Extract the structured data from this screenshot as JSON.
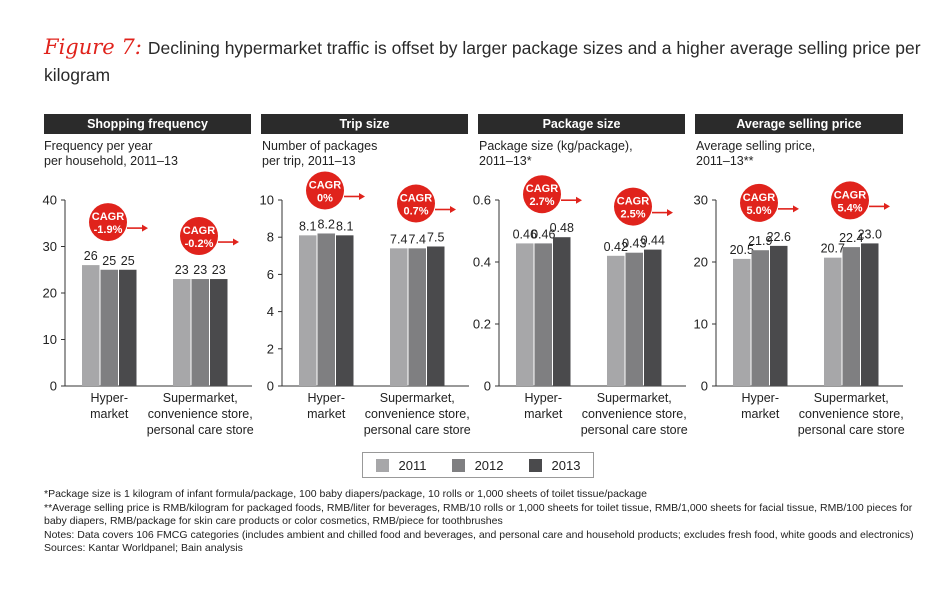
{
  "figure": {
    "label": "Figure 7:",
    "title": "Declining hypermarket traffic is offset by larger package sizes and a higher average selling price per kilogram"
  },
  "colors": {
    "2011": "#a7a7a9",
    "2012": "#7f7f81",
    "2013": "#4a4a4c",
    "accent": "#e0231c"
  },
  "legend": [
    "2011",
    "2012",
    "2013"
  ],
  "chart_data": [
    {
      "type": "bar",
      "title": "Shopping frequency",
      "subtitle": [
        "Frequency per year",
        "per household, 2011–13"
      ],
      "ylim": [
        0,
        40
      ],
      "yticks": [
        0,
        10,
        20,
        30,
        40
      ],
      "categories": [
        [
          "Hyper-",
          "market"
        ],
        [
          "Supermarket,",
          "convenience store,",
          "personal care store"
        ]
      ],
      "series": [
        {
          "name": "2011",
          "values": [
            26,
            23
          ]
        },
        {
          "name": "2012",
          "values": [
            25,
            23
          ]
        },
        {
          "name": "2013",
          "values": [
            25,
            23
          ]
        }
      ],
      "value_labels": [
        [
          "26",
          "25",
          "25"
        ],
        [
          "23",
          "23",
          "23"
        ]
      ],
      "cagr": [
        "-1.9%",
        "-0.2%"
      ]
    },
    {
      "type": "bar",
      "title": "Trip size",
      "subtitle": [
        "Number of packages",
        "per trip, 2011–13"
      ],
      "ylim": [
        0,
        10
      ],
      "yticks": [
        0,
        2,
        4,
        6,
        8,
        10
      ],
      "categories": [
        [
          "Hyper-",
          "market"
        ],
        [
          "Supermarket,",
          "convenience store,",
          "personal care store"
        ]
      ],
      "series": [
        {
          "name": "2011",
          "values": [
            8.1,
            7.4
          ]
        },
        {
          "name": "2012",
          "values": [
            8.2,
            7.4
          ]
        },
        {
          "name": "2013",
          "values": [
            8.1,
            7.5
          ]
        }
      ],
      "value_labels": [
        [
          "8.1",
          "8.2",
          "8.1"
        ],
        [
          "7.4",
          "7.4",
          "7.5"
        ]
      ],
      "cagr": [
        "0%",
        "0.7%"
      ]
    },
    {
      "type": "bar",
      "title": "Package size",
      "subtitle": [
        "Package size (kg/package),",
        "2011–13*"
      ],
      "ylim": [
        0,
        0.6
      ],
      "yticks": [
        0,
        0.2,
        0.4,
        0.6
      ],
      "categories": [
        [
          "Hyper-",
          "market"
        ],
        [
          "Supermarket,",
          "convenience store,",
          "personal care store"
        ]
      ],
      "series": [
        {
          "name": "2011",
          "values": [
            0.46,
            0.42
          ]
        },
        {
          "name": "2012",
          "values": [
            0.46,
            0.43
          ]
        },
        {
          "name": "2013",
          "values": [
            0.48,
            0.44
          ]
        }
      ],
      "value_labels": [
        [
          "0.46",
          "0.46",
          "0.48"
        ],
        [
          "0.42",
          "0.43",
          "0.44"
        ]
      ],
      "cagr": [
        "2.7%",
        "2.5%"
      ]
    },
    {
      "type": "bar",
      "title": "Average selling price",
      "subtitle": [
        "Average selling price,",
        "2011–13**"
      ],
      "ylim": [
        0,
        30
      ],
      "yticks": [
        0,
        10,
        20,
        30
      ],
      "categories": [
        [
          "Hyper-",
          "market"
        ],
        [
          "Supermarket,",
          "convenience store,",
          "personal care store"
        ]
      ],
      "series": [
        {
          "name": "2011",
          "values": [
            20.5,
            20.7
          ]
        },
        {
          "name": "2012",
          "values": [
            21.9,
            22.4
          ]
        },
        {
          "name": "2013",
          "values": [
            22.6,
            23.0
          ]
        }
      ],
      "value_labels": [
        [
          "20.5",
          "21.9",
          "22.6"
        ],
        [
          "20.7",
          "22.4",
          "23.0"
        ]
      ],
      "cagr": [
        "5.0%",
        "5.4%"
      ]
    }
  ],
  "cagr_label": "CAGR",
  "notes": [
    "*Package size is 1 kilogram of infant formula/package, 100 baby diapers/package, 10 rolls or 1,000 sheets of toilet tissue/package",
    "**Average selling price is RMB/kilogram for packaged foods, RMB/liter for beverages, RMB/10 rolls or 1,000 sheets for toilet tissue, RMB/1,000 sheets for facial tissue, RMB/100 pieces for baby diapers, RMB/package for skin care products or color cosmetics, RMB/piece for toothbrushes",
    "Notes: Data covers 106 FMCG categories (includes ambient and chilled food and beverages, and personal care and household products; excludes fresh food, white goods and electronics)",
    "Sources: Kantar Worldpanel; Bain analysis"
  ]
}
